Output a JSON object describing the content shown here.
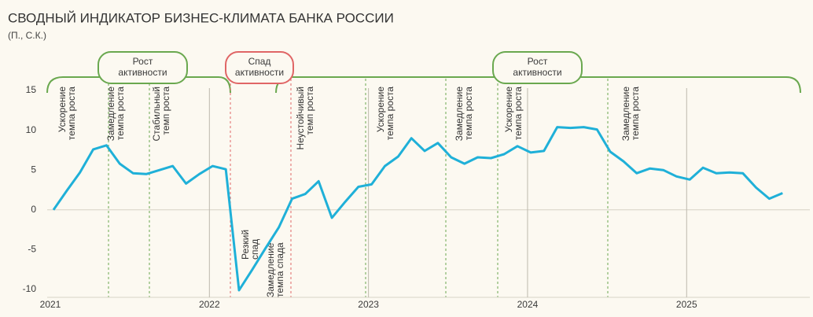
{
  "chart_data": {
    "type": "line",
    "title": "СВОДНЫЙ ИНДИКАТОР БИЗНЕС-КЛИМАТА БАНКА РОССИИ",
    "subtitle": "(П., С.К.)",
    "categories": [
      "2021",
      null,
      null,
      null,
      null,
      null,
      null,
      null,
      null,
      null,
      null,
      null,
      "2022",
      null,
      null,
      null,
      null,
      null,
      null,
      null,
      null,
      null,
      null,
      null,
      "2023",
      null,
      null,
      null,
      null,
      null,
      null,
      null,
      null,
      null,
      null,
      null,
      "2024",
      null,
      null,
      null,
      null,
      null,
      null,
      null,
      null,
      null,
      null,
      null,
      "2025",
      null,
      null,
      null,
      null,
      null,
      null,
      null
    ],
    "series": [
      {
        "color": "#1fb0d8",
        "values": [
          0,
          2.4,
          4.7,
          7.6,
          8.1,
          5.8,
          4.6,
          4.5,
          5.0,
          5.5,
          3.3,
          4.5,
          5.5,
          5.1,
          -10.1,
          -7.5,
          -4.8,
          -2.2,
          1.4,
          2.0,
          3.6,
          -1.0,
          1.0,
          2.9,
          3.2,
          5.5,
          6.7,
          9.0,
          7.4,
          8.4,
          6.6,
          5.8,
          6.6,
          6.5,
          7.0,
          8.0,
          7.2,
          7.4,
          10.4,
          10.3,
          10.4,
          10.1,
          7.3,
          6.1,
          4.6,
          5.2,
          5.0,
          4.2,
          3.8,
          5.3,
          4.6,
          4.7,
          4.6,
          2.8,
          1.4,
          2.1
        ]
      }
    ],
    "ylim": [
      -10,
      15
    ],
    "yticks": [
      -10,
      -5,
      0,
      5,
      10,
      15
    ],
    "phases": [
      {
        "label": [
          "Рост",
          "активности"
        ],
        "color": "#6aa84f"
      },
      {
        "label": [
          "Спад",
          "активности"
        ],
        "color": "#e06666"
      },
      {
        "label": [
          "Рост",
          "активности"
        ],
        "color": "#6aa84f"
      }
    ],
    "annotations": [
      [
        "Ускорение",
        "темпа роста"
      ],
      [
        "Замедление",
        "темпа роста"
      ],
      [
        "Стабильный",
        "темп роста"
      ],
      [
        "Резкий",
        "спад"
      ],
      [
        "Замедление",
        "темпа спада"
      ],
      [
        "Неустойчивый",
        "темп роста"
      ],
      [
        "Ускорение",
        "темпа роста"
      ],
      [
        "Замедление",
        "темпа роста"
      ],
      [
        "Ускорение",
        "темпа роста"
      ],
      [
        "Замедление",
        "темпа роста"
      ]
    ]
  }
}
